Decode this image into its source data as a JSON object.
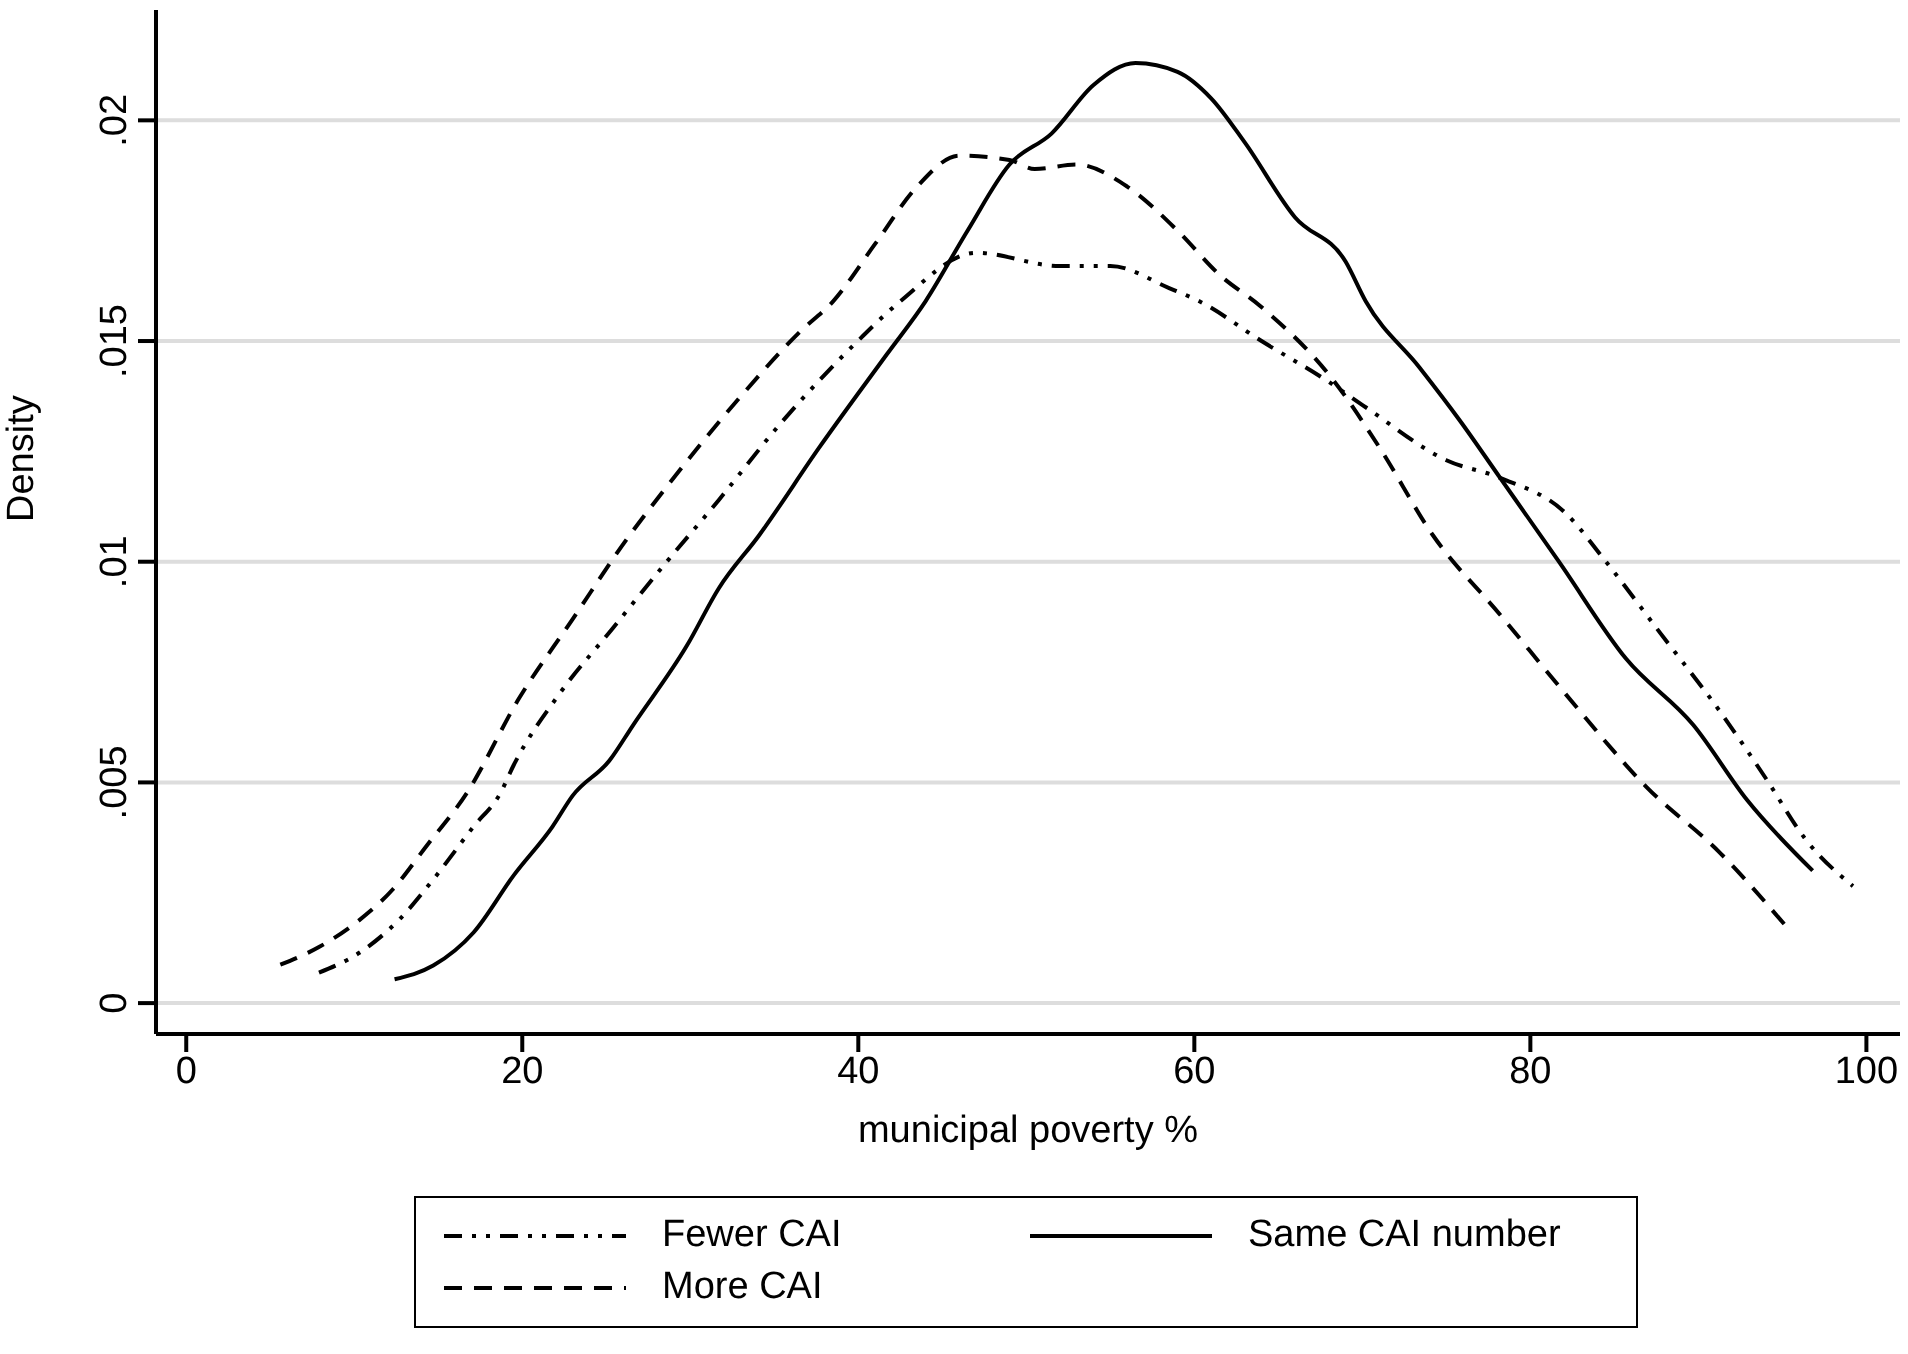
{
  "chart_data": {
    "type": "line",
    "xlabel": "municipal poverty %",
    "ylabel": "Density",
    "xlim": [
      -1.8,
      102
    ],
    "ylim": [
      -0.0007,
      0.0225
    ],
    "xticks": [
      0,
      20,
      40,
      60,
      80,
      100
    ],
    "yticks": [
      {
        "value": 0,
        "label": "0"
      },
      {
        "value": 0.005,
        "label": ".005"
      },
      {
        "value": 0.01,
        "label": ".01"
      },
      {
        "value": 0.015,
        "label": ".015"
      },
      {
        "value": 0.02,
        "label": ".02"
      }
    ],
    "grid": "y",
    "legend": "bottom",
    "marker": "none",
    "series": [
      {
        "name": "Fewer CAI",
        "color": "#000000",
        "line_style": "dashdot",
        "x": [
          7.9,
          10.3,
          12.7,
          14.7,
          17.1,
          18.7,
          19.5,
          22.2,
          25.4,
          28.6,
          31.7,
          35.3,
          39.7,
          42.5,
          47,
          52,
          55,
          58.5,
          60.3,
          64,
          67.9,
          70.2,
          75,
          78.2,
          82.1,
          84.5,
          87.7,
          91.3,
          94,
          96.4,
          99.2
        ],
        "values": [
          0.00069,
          0.00114,
          0.0019,
          0.0028,
          0.004,
          0.00476,
          0.0054,
          0.007,
          0.0085,
          0.01,
          0.0114,
          0.0131,
          0.0149,
          0.0159,
          0.017,
          0.0167,
          0.0167,
          0.0162,
          0.0159,
          0.015,
          0.0141,
          0.0135,
          0.0123,
          0.0119,
          0.0111,
          0.01,
          0.0084,
          0.0066,
          0.0051,
          0.0037,
          0.00265
        ]
      },
      {
        "name": "Same CAI number",
        "color": "#000000",
        "line_style": "solid",
        "x": [
          12.4,
          14.7,
          17.1,
          19.5,
          21.8,
          23,
          25.2,
          26.6,
          29.8,
          31.7,
          34.1,
          37.7,
          41.7,
          44,
          46.5,
          49,
          51.5,
          54,
          56.5,
          59,
          61,
          63,
          66,
          69,
          70.2,
          73.4,
          75.8,
          78.2,
          81.7,
          85.7,
          89.7,
          92.9,
          96.8
        ],
        "values": [
          0.00054,
          0.00085,
          0.0016,
          0.0029,
          0.004,
          0.0047,
          0.0055,
          0.0063,
          0.0081,
          0.0094,
          0.0106,
          0.0126,
          0.0147,
          0.0159,
          0.0175,
          0.019,
          0.0197,
          0.0208,
          0.0213,
          0.0211,
          0.0205,
          0.0195,
          0.0178,
          0.0168,
          0.0159,
          0.0144,
          0.0132,
          0.0119,
          0.01,
          0.0078,
          0.0063,
          0.0046,
          0.003
        ]
      },
      {
        "name": "More CAI",
        "color": "#000000",
        "line_style": "dashed",
        "x": [
          5.6,
          7.9,
          10.1,
          12.3,
          14.3,
          16.7,
          19.8,
          23,
          26.2,
          28.6,
          32.9,
          36.5,
          38.5,
          41,
          43.5,
          46,
          49,
          50.5,
          53,
          56,
          59,
          61.5,
          63.9,
          68.3,
          71,
          74.2,
          78.2,
          82.1,
          86.9,
          91.3,
          95.2
        ],
        "values": [
          0.00087,
          0.00127,
          0.00182,
          0.00258,
          0.00356,
          0.00476,
          0.0069,
          0.0087,
          0.0105,
          0.0117,
          0.0137,
          0.0152,
          0.0159,
          0.0172,
          0.0185,
          0.0192,
          0.0191,
          0.0189,
          0.019,
          0.0185,
          0.0175,
          0.0165,
          0.0158,
          0.0141,
          0.0126,
          0.0106,
          0.0088,
          0.007,
          0.0049,
          0.0034,
          0.00175
        ]
      }
    ]
  }
}
